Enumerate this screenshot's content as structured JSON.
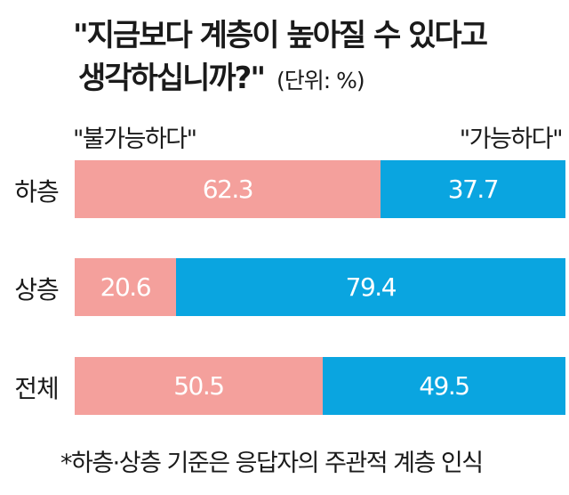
{
  "chart_data": {
    "type": "bar",
    "orientation": "horizontal",
    "stacked": true,
    "title_line1": "\"지금보다 계층이 높아질 수 있다고",
    "title_line2": "생각하십니까?\"",
    "unit_note": "(단위: %)",
    "categories": [
      "하층",
      "상층",
      "전체"
    ],
    "series": [
      {
        "name": "\"불가능하다\"",
        "values": [
          62.3,
          20.6,
          50.5
        ],
        "color": "#f4a09c"
      },
      {
        "name": "\"가능하다\"",
        "values": [
          37.7,
          79.4,
          49.5
        ],
        "color": "#0aa5e0"
      }
    ],
    "value_labels": [
      [
        "62.3",
        "20.6",
        "50.5"
      ],
      [
        "37.7",
        "79.4",
        "49.5"
      ]
    ],
    "xlim": [
      0,
      100
    ],
    "grid": false,
    "legend_placement": "top",
    "footnote": "*하층·상층 기준은 응답자의 주관적 계층 인식"
  }
}
